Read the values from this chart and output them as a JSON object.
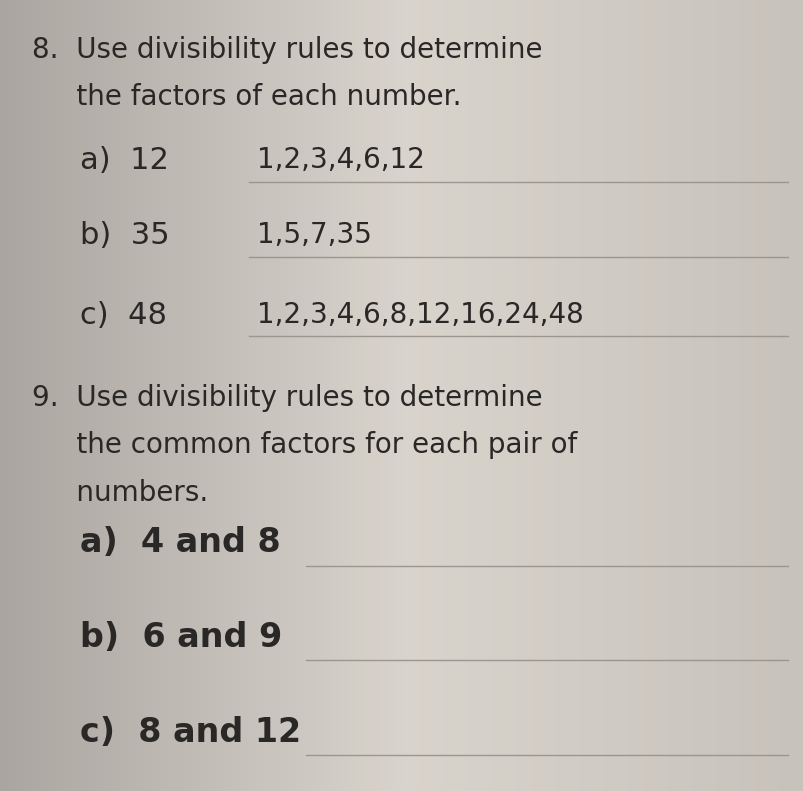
{
  "bg_color_left": "#b8b4ac",
  "bg_color_center": "#d8d4cc",
  "bg_color_right": "#ccc8c0",
  "title_q8_line1": "8.  Use divisibility rules to determine",
  "title_q8_line2": "     the factors of each number.",
  "q8_items": [
    {
      "label": "a)",
      "number": "12",
      "answer": "1,2,3,4,6,12"
    },
    {
      "label": "b)",
      "number": "35",
      "answer": "1,5,7,35"
    },
    {
      "label": "c)",
      "number": "48",
      "answer": "1,2,3,4,6,8,12,16,24,48"
    }
  ],
  "title_q9_line1": "9.  Use divisibility rules to determine",
  "title_q9_line2": "     the common factors for each pair of",
  "title_q9_line3": "     numbers.",
  "q9_items": [
    {
      "label": "a)",
      "pair": "4 and 8"
    },
    {
      "label": "b)",
      "pair": "6 and 9"
    },
    {
      "label": "c)",
      "pair": "8 and 12"
    }
  ],
  "text_color": "#2a2826",
  "answer_color": "#2a2826",
  "line_color": "#9a9690",
  "fs_heading": 20,
  "fs_item_label": 22,
  "fs_item_answer": 20,
  "fs_q9_item": 24
}
